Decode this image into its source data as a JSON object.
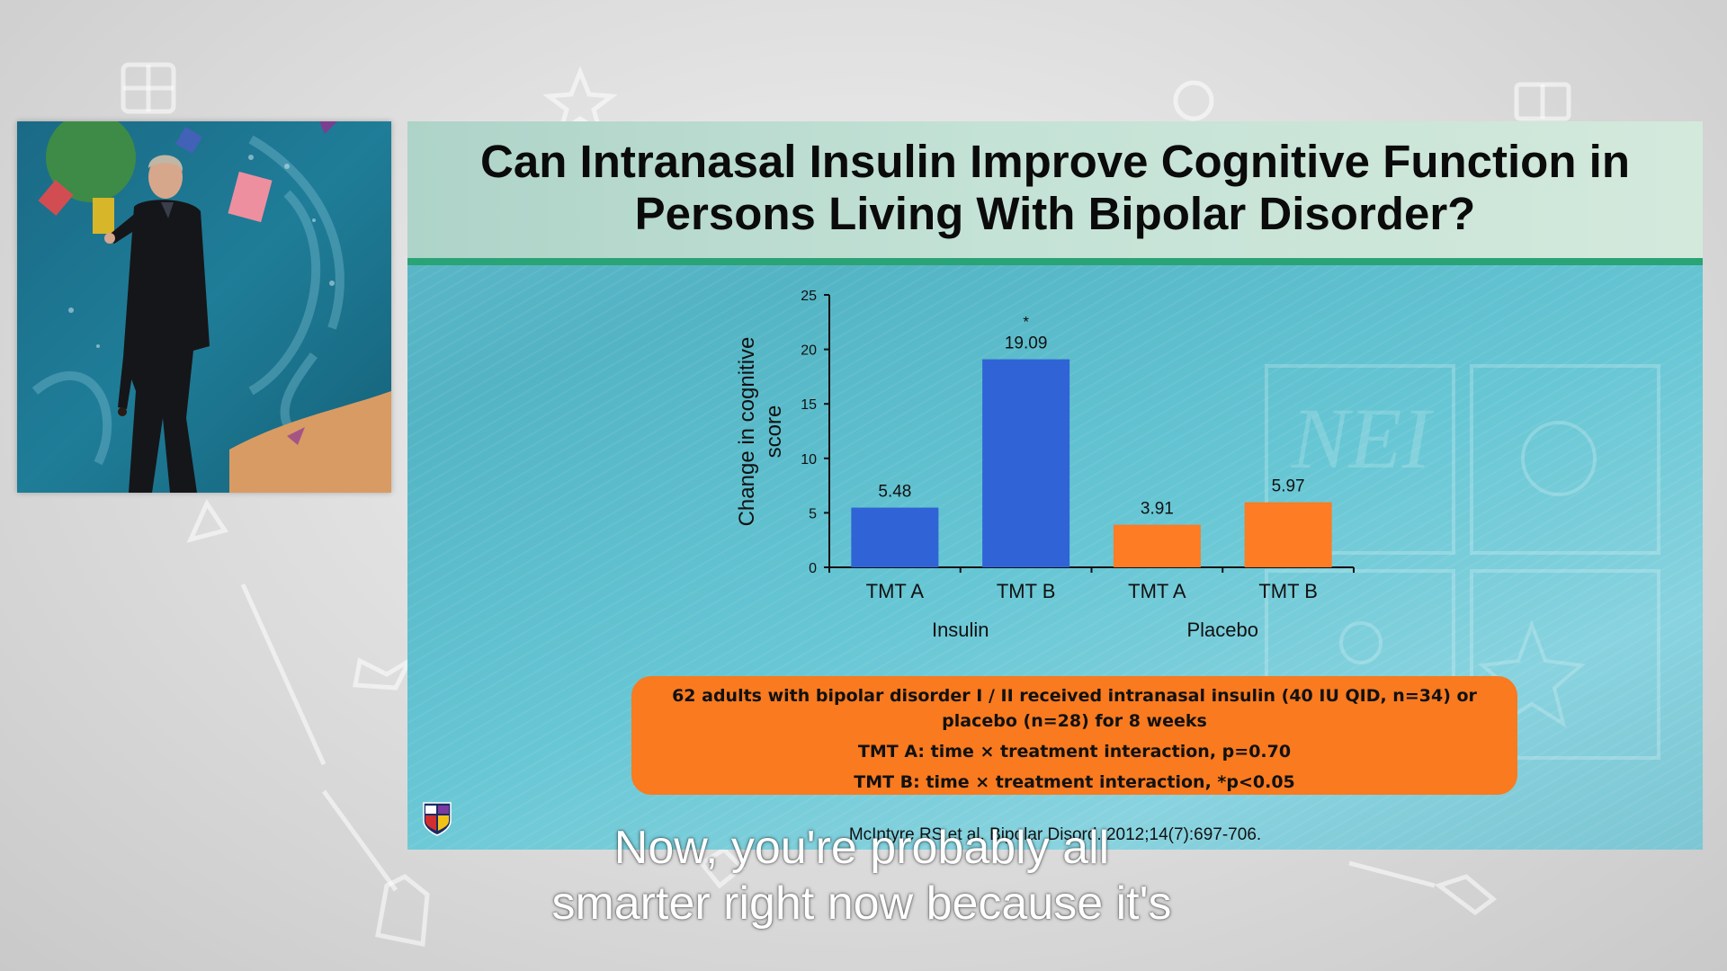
{
  "slide": {
    "title_line1": "Can Intranasal Insulin Improve Cognitive Function in",
    "title_line2": "Persons Living With Bipolar Disorder?",
    "info_box": {
      "line1": "62 adults with bipolar disorder I / II received intranasal insulin (40 IU QID, n=34) or placebo (n=28) for 8 weeks",
      "line2": "TMT A: time × treatment interaction, p=0.70",
      "line3": "TMT B: time × treatment interaction, *p<0.05"
    },
    "citation": "McIntyre RS et al. Bipolar Disord. 2012;14(7):697-706.",
    "logo_icon": "nei-shield-icon"
  },
  "chart_data": {
    "type": "bar",
    "title": "",
    "ylabel": "Change in cognitive score",
    "ylim": [
      0,
      25
    ],
    "yticks": [
      "0",
      "5",
      "10",
      "15",
      "20",
      "25"
    ],
    "groups": [
      "Insulin",
      "Placebo"
    ],
    "categories": [
      "TMT A",
      "TMT B",
      "TMT A",
      "TMT B"
    ],
    "values": [
      5.48,
      19.09,
      3.91,
      5.97
    ],
    "data_labels": [
      "5.48",
      "19.09",
      "3.91",
      "5.97"
    ],
    "group_of_category": [
      "Insulin",
      "Insulin",
      "Placebo",
      "Placebo"
    ],
    "colors": [
      "#2f63d6",
      "#2f63d6",
      "#fd7c24",
      "#fd7c24"
    ],
    "significance_marker": "*",
    "significance_index": 1
  },
  "captions": {
    "line1": "Now, you're probably all",
    "line2": "smarter right now because it's"
  },
  "speaker_video": {
    "description_icon": "speaker-video-tile"
  }
}
